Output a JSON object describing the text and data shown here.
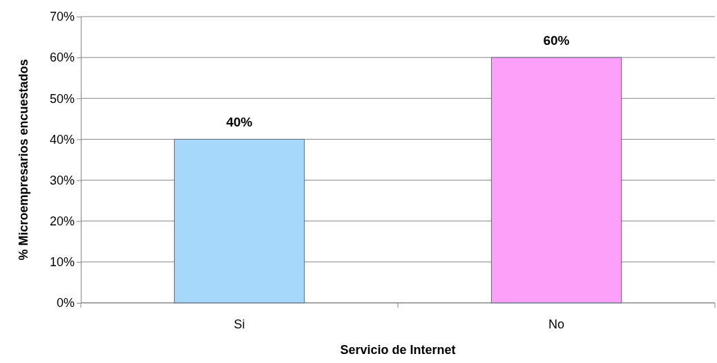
{
  "chart_data": {
    "type": "bar",
    "xlabel": "Servicio de Internet",
    "ylabel": "% Microempresarios encuestados",
    "categories": [
      "Si",
      "No"
    ],
    "values": [
      40,
      60
    ],
    "colors": [
      "#a6d8fc",
      "#fda0f9"
    ],
    "value_labels": [
      "40%",
      "60%"
    ],
    "ylim": [
      0,
      70
    ],
    "yticks": [
      {
        "value": 0,
        "label": "0%"
      },
      {
        "value": 10,
        "label": "10%"
      },
      {
        "value": 20,
        "label": "20%"
      },
      {
        "value": 30,
        "label": "30%"
      },
      {
        "value": 40,
        "label": "40%"
      },
      {
        "value": 50,
        "label": "50%"
      },
      {
        "value": 60,
        "label": "60%"
      },
      {
        "value": 70,
        "label": "70%"
      }
    ],
    "grid": "y"
  }
}
